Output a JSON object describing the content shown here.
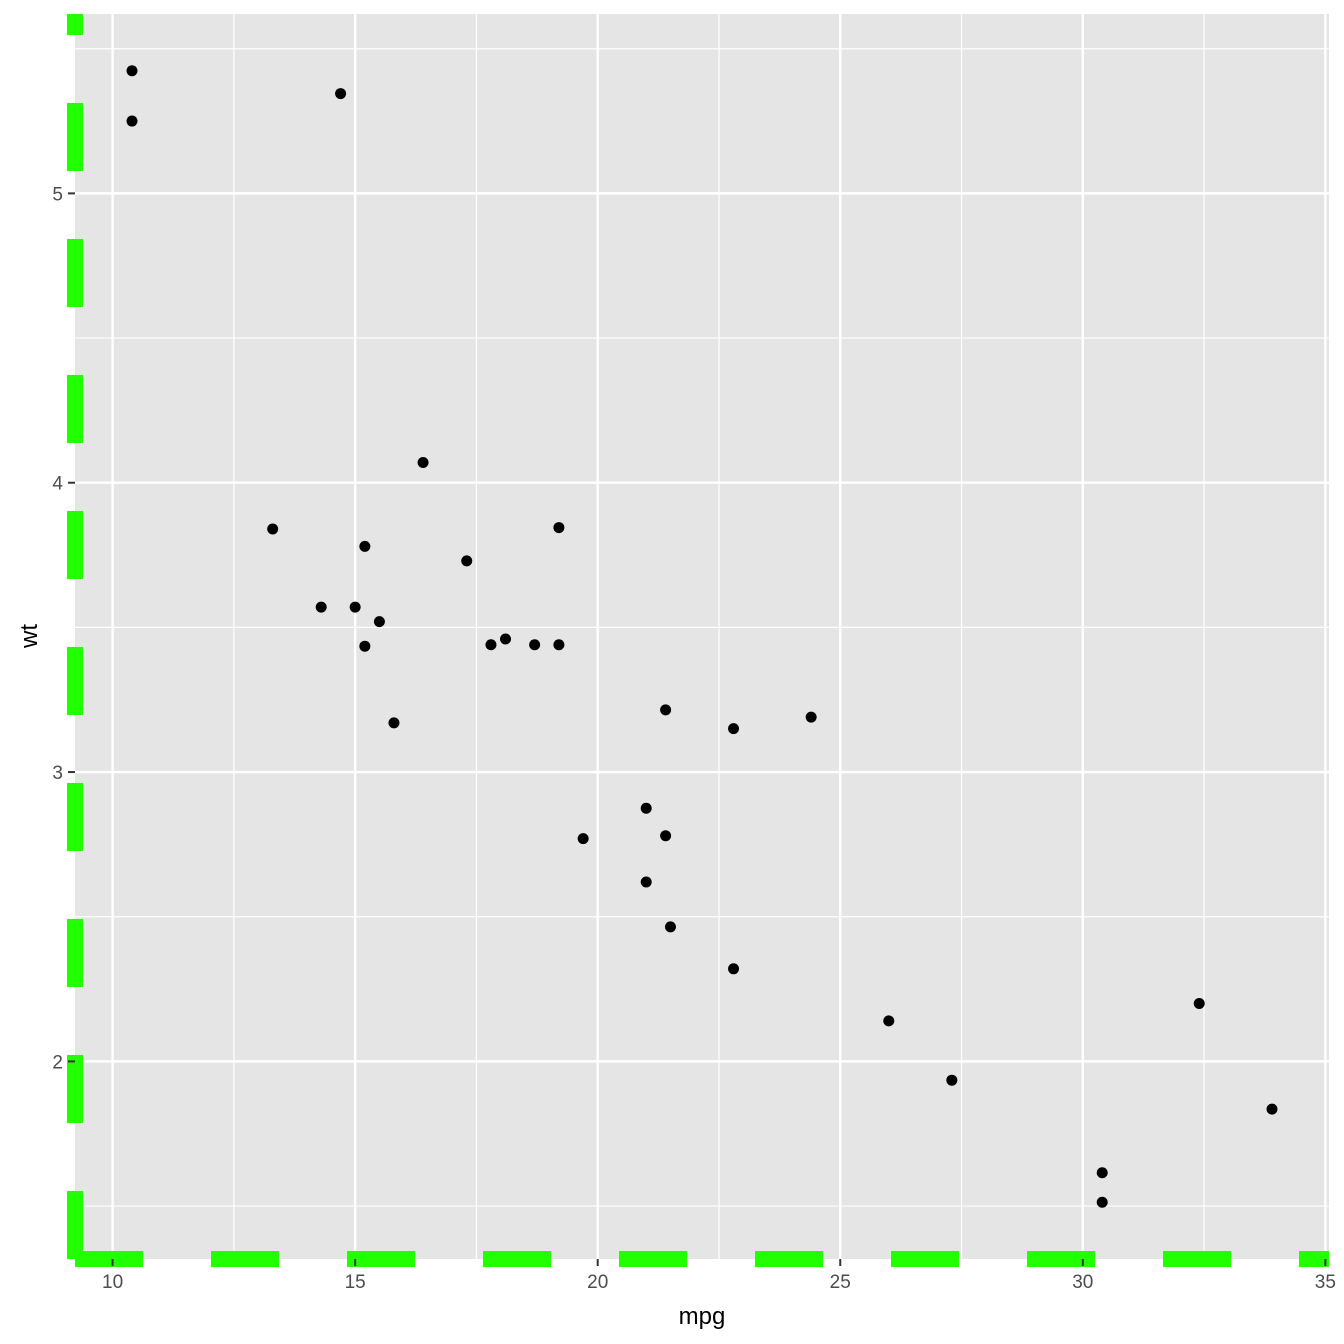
{
  "chart_data": {
    "type": "scatter",
    "xlabel": "mpg",
    "ylabel": "wt",
    "xlim": [
      9.225,
      35.075
    ],
    "ylim": [
      1.317,
      5.62
    ],
    "xticks": [
      10,
      15,
      20,
      25,
      30,
      35
    ],
    "yticks": [
      2,
      3,
      4,
      5
    ],
    "grid": true,
    "panel_background": "#e5e5e5",
    "axis_line_color": "#22ff00",
    "axis_line_style": "dashed",
    "point_color": "#000000",
    "points": [
      [
        21.0,
        2.62
      ],
      [
        21.0,
        2.875
      ],
      [
        22.8,
        2.32
      ],
      [
        21.4,
        3.215
      ],
      [
        18.7,
        3.44
      ],
      [
        18.1,
        3.46
      ],
      [
        14.3,
        3.57
      ],
      [
        24.4,
        3.19
      ],
      [
        22.8,
        3.15
      ],
      [
        19.2,
        3.44
      ],
      [
        17.8,
        3.44
      ],
      [
        16.4,
        4.07
      ],
      [
        17.3,
        3.73
      ],
      [
        15.2,
        3.78
      ],
      [
        10.4,
        5.25
      ],
      [
        10.4,
        5.424
      ],
      [
        14.7,
        5.345
      ],
      [
        32.4,
        2.2
      ],
      [
        30.4,
        1.615
      ],
      [
        33.9,
        1.835
      ],
      [
        21.5,
        2.465
      ],
      [
        15.5,
        3.52
      ],
      [
        15.2,
        3.435
      ],
      [
        13.3,
        3.84
      ],
      [
        19.2,
        3.845
      ],
      [
        27.3,
        1.935
      ],
      [
        26.0,
        2.14
      ],
      [
        30.4,
        1.513
      ],
      [
        15.8,
        3.17
      ],
      [
        19.7,
        2.77
      ],
      [
        15.0,
        3.57
      ],
      [
        21.4,
        2.78
      ]
    ]
  }
}
